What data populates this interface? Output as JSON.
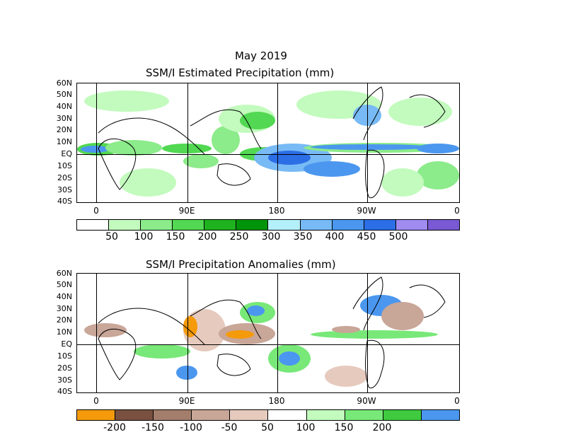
{
  "month_title": "May 2019",
  "top_panel": {
    "title": "SSM/I Estimated Precipitation (mm)",
    "lat_labels": [
      "60N",
      "50N",
      "40N",
      "30N",
      "20N",
      "10N",
      "EQ",
      "10S",
      "20S",
      "30S",
      "40S"
    ],
    "lon_labels": [
      "0",
      "90E",
      "180",
      "90W",
      "0"
    ],
    "colorbar": {
      "colors": [
        "#ffffff",
        "#c2fbbd",
        "#8ceb8a",
        "#52d852",
        "#1fb21f",
        "#00940a",
        "#b4f0fa",
        "#78baf5",
        "#4b97ef",
        "#2c6ee6",
        "#a08cf0",
        "#7a5ad4"
      ],
      "labels": [
        "50",
        "100",
        "150",
        "200",
        "250",
        "300",
        "350",
        "400",
        "450",
        "500"
      ]
    }
  },
  "bottom_panel": {
    "title": "SSM/I Precipitation Anomalies (mm)",
    "lat_labels": [
      "60N",
      "50N",
      "40N",
      "30N",
      "20N",
      "10N",
      "EQ",
      "10S",
      "20S",
      "30S",
      "40S"
    ],
    "lon_labels": [
      "0",
      "90E",
      "180",
      "90W",
      "0"
    ],
    "colorbar": {
      "colors": [
        "#f59a0a",
        "#7a5040",
        "#a47e6c",
        "#c8a698",
        "#e6cabe",
        "#ffffff",
        "#c2fbbd",
        "#78e878",
        "#3fca3f",
        "#4b97ef"
      ],
      "labels": [
        "-200",
        "-150",
        "-100",
        "-50",
        "50",
        "100",
        "150",
        "200"
      ]
    }
  }
}
